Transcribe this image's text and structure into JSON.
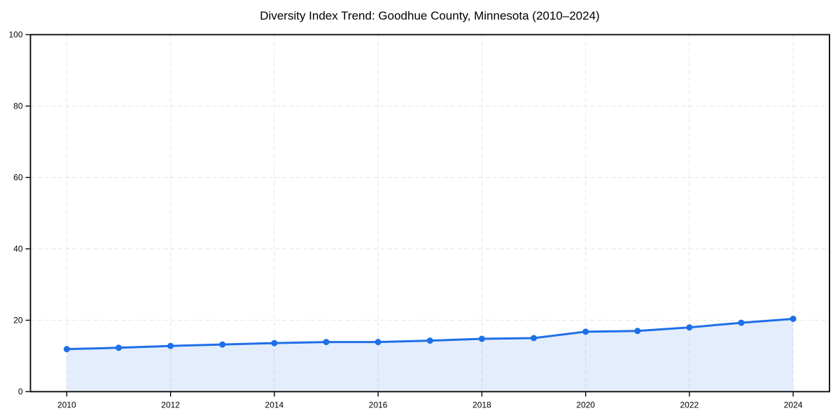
{
  "chart_data": {
    "type": "line",
    "title": "Diversity Index Trend: Goodhue County, Minnesota (2010–2024)",
    "xlabel": "",
    "ylabel": "",
    "x": [
      2010,
      2011,
      2012,
      2013,
      2014,
      2015,
      2016,
      2017,
      2018,
      2019,
      2020,
      2021,
      2022,
      2023,
      2024
    ],
    "series": [
      {
        "name": "Diversity Index",
        "values": [
          11.9,
          12.3,
          12.8,
          13.2,
          13.6,
          13.9,
          13.9,
          14.3,
          14.8,
          15.0,
          16.8,
          17.0,
          18.0,
          19.3,
          20.4
        ]
      }
    ],
    "xticks": [
      "2010",
      "2012",
      "2014",
      "2016",
      "2018",
      "2020",
      "2022",
      "2024"
    ],
    "xtick_values": [
      2010,
      2012,
      2014,
      2016,
      2018,
      2020,
      2022,
      2024
    ],
    "yticks": [
      "0",
      "20",
      "40",
      "60",
      "80",
      "100"
    ],
    "ytick_values": [
      0,
      20,
      40,
      60,
      80,
      100
    ],
    "xlim": [
      2009.3,
      2024.7
    ],
    "ylim": [
      0,
      100
    ],
    "grid": true,
    "grid_style": "dashed",
    "legend": "none",
    "colors": {
      "line": "#1e6fe8",
      "marker": "#1e6fe8",
      "fill": "rgba(30,111,232,0.12)",
      "grid": "#e4e4e4",
      "spine": "#000000",
      "text": "#000000"
    },
    "marker": "circle"
  }
}
